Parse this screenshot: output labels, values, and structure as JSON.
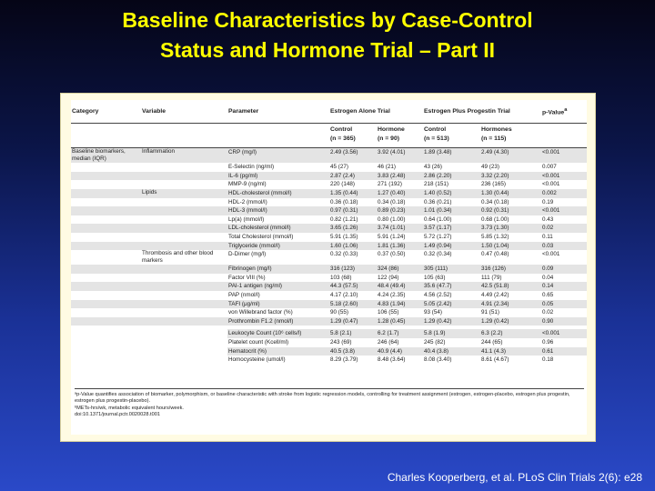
{
  "slide": {
    "title_line1": "Baseline Characteristics by Case-Control",
    "title_line2": "Status and Hormone Trial – Part II",
    "citation": "Charles Kooperberg, et al. PLoS Clin Trials 2(6): e28"
  },
  "table": {
    "headers": {
      "category": "Category",
      "variable": "Variable",
      "parameter": "Parameter",
      "trial_alone": "Estrogen Alone Trial",
      "trial_plus": "Estrogen Plus Progestin Trial",
      "pvalue": "p-Value"
    },
    "subheaders": [
      {
        "line1": "Control",
        "line2": "(n = 365)"
      },
      {
        "line1": "Hormone",
        "line2": "(n = 90)"
      },
      {
        "line1": "Control",
        "line2": "(n = 513)"
      },
      {
        "line1": "Hormones",
        "line2": "(n = 115)"
      }
    ],
    "rows": [
      {
        "category": "Baseline biomarkers, median (IQR)",
        "variable": "Inflammation",
        "parameter": "CRP (mg/l)",
        "c1": "2.49 (3.56)",
        "h1": "3.92 (4.01)",
        "c2": "1.89 (3.48)",
        "h2": "2.49 (4.30)",
        "p": "<0.001",
        "shade": true
      },
      {
        "category": "",
        "variable": "",
        "parameter": "E-Selectin (ng/ml)",
        "c1": "45 (27)",
        "h1": "46 (21)",
        "c2": "43 (26)",
        "h2": "49 (23)",
        "p": "0.007",
        "shade": false
      },
      {
        "category": "",
        "variable": "",
        "parameter": "IL-6 (pg/ml)",
        "c1": "2.87 (2.4)",
        "h1": "3.83 (2.48)",
        "c2": "2.86 (2.20)",
        "h2": "3.32 (2.20)",
        "p": "<0.001",
        "shade": true
      },
      {
        "category": "",
        "variable": "",
        "parameter": "MMP-9 (ng/ml)",
        "c1": "220 (148)",
        "h1": "271 (192)",
        "c2": "218 (151)",
        "h2": "236 (165)",
        "p": "<0.001",
        "shade": false
      },
      {
        "category": "",
        "variable": "Lipids",
        "parameter": "HDL-cholesterol (mmol/l)",
        "c1": "1.35 (0.44)",
        "h1": "1.27 (0.40)",
        "c2": "1.40 (0.52)",
        "h2": "1.30 (0.44)",
        "p": "0.002",
        "shade": true
      },
      {
        "category": "",
        "variable": "",
        "parameter": "HDL-2 (mmol/l)",
        "c1": "0.36 (0.18)",
        "h1": "0.34 (0.18)",
        "c2": "0.36 (0.21)",
        "h2": "0.34 (0.18)",
        "p": "0.19",
        "shade": false
      },
      {
        "category": "",
        "variable": "",
        "parameter": "HDL-3 (mmol/l)",
        "c1": "0.97 (0.31)",
        "h1": "0.89 (0.23)",
        "c2": "1.01 (0.34)",
        "h2": "0.92 (0.31)",
        "p": "<0.001",
        "shade": true
      },
      {
        "category": "",
        "variable": "",
        "parameter": "Lp(a) (mmol/l)",
        "c1": "0.82 (1.21)",
        "h1": "0.80 (1.00)",
        "c2": "0.64 (1.00)",
        "h2": "0.68 (1.00)",
        "p": "0.43",
        "shade": false
      },
      {
        "category": "",
        "variable": "",
        "parameter": "LDL-cholesterol (mmol/l)",
        "c1": "3.65 (1.26)",
        "h1": "3.74 (1.01)",
        "c2": "3.57 (1.17)",
        "h2": "3.73 (1.30)",
        "p": "0.02",
        "shade": true
      },
      {
        "category": "",
        "variable": "",
        "parameter": "Total Cholesterol (mmol/l)",
        "c1": "5.91 (1.35)",
        "h1": "5.91 (1.24)",
        "c2": "5.72 (1.27)",
        "h2": "5.85 (1.32)",
        "p": "0.11",
        "shade": false
      },
      {
        "category": "",
        "variable": "",
        "parameter": "Triglyceride (mmol/l)",
        "c1": "1.60 (1.06)",
        "h1": "1.81 (1.36)",
        "c2": "1.49 (0.94)",
        "h2": "1.50 (1.04)",
        "p": "0.03",
        "shade": true
      },
      {
        "category": "",
        "variable": "Thrombosis and other blood markers",
        "parameter": "D-Dimer (mg/l)",
        "c1": "0.32 (0.33)",
        "h1": "0.37 (0.50)",
        "c2": "0.32 (0.34)",
        "h2": "0.47 (0.48)",
        "p": "<0.001",
        "shade": false
      },
      {
        "category": "",
        "variable": "",
        "parameter": "Fibrinogen (mg/l)",
        "c1": "316 (123)",
        "h1": "324 (86)",
        "c2": "305 (111)",
        "h2": "316 (126)",
        "p": "0.09",
        "shade": true
      },
      {
        "category": "",
        "variable": "",
        "parameter": "Factor VIII (%)",
        "c1": "103 (68)",
        "h1": "122 (94)",
        "c2": "105 (63)",
        "h2": "111 (79)",
        "p": "0.04",
        "shade": false
      },
      {
        "category": "",
        "variable": "",
        "parameter": "PAI-1 antigen (ng/ml)",
        "c1": "44.3 (57.5)",
        "h1": "48.4 (49.4)",
        "c2": "35.6 (47.7)",
        "h2": "42.5 (51.8)",
        "p": "0.14",
        "shade": true
      },
      {
        "category": "",
        "variable": "",
        "parameter": "PAP (nmol/l)",
        "c1": "4.17 (2.10)",
        "h1": "4.24 (2.35)",
        "c2": "4.56 (2.52)",
        "h2": "4.49 (2.42)",
        "p": "0.65",
        "shade": false
      },
      {
        "category": "",
        "variable": "",
        "parameter": "TAFI (μg/ml)",
        "c1": "5.18 (2.60)",
        "h1": "4.83 (1.94)",
        "c2": "5.05 (2.42)",
        "h2": "4.91 (2.34)",
        "p": "0.05",
        "shade": true
      },
      {
        "category": "",
        "variable": "",
        "parameter": "von Willebrand factor (%)",
        "c1": "90 (55)",
        "h1": "106 (55)",
        "c2": "93 (54)",
        "h2": "91 (51)",
        "p": "0.02",
        "shade": false
      },
      {
        "category": "",
        "variable": "",
        "parameter": "Prothrombin F1.2 (nmol/l)",
        "c1": "1.29 (0.47)",
        "h1": "1.28 (0.45)",
        "c2": "1.29 (0.42)",
        "h2": "1.29 (0.42)",
        "p": "0.90",
        "shade": true
      }
    ],
    "blood_rows": [
      {
        "parameter": "Leukocyte Count (10⁶ cells/l)",
        "c1": "5.8 (2.1)",
        "h1": "6.2 (1.7)",
        "c2": "5.8 (1.9)",
        "h2": "6.3 (2.2)",
        "p": "<0.001",
        "shade": true
      },
      {
        "parameter": "Platelet count (Kcell/ml)",
        "c1": "243 (69)",
        "h1": "246 (64)",
        "c2": "245 (82)",
        "h2": "244 (65)",
        "p": "0.96",
        "shade": false
      },
      {
        "parameter": "Hematocrit (%)",
        "c1": "40.5 (3.8)",
        "h1": "40.9 (4.4)",
        "c2": "40.4 (3.8)",
        "h2": "41.1 (4.3)",
        "p": "0.61",
        "shade": true
      },
      {
        "parameter": "Homocysteine (umol/l)",
        "c1": "8.29 (3.79)",
        "h1": "8.48 (3.64)",
        "c2": "8.08 (3.40)",
        "h2": "8.61 (4.67)",
        "p": "0.18",
        "shade": false
      }
    ],
    "footnotes": [
      "ᵃp-Value quantifies association of biomarker, polymorphism, or baseline characteristic with stroke from logistic regression models, controlling for treatment assignment (estrogen, estrogen-placebo, estrogen plus progestin, estrogen plus progestin-placebo).",
      "ᵇMETs-hrs/wk, metabolic equivalent hours/week.",
      "doi:10.1371/journal.pctr.0020028.t001"
    ]
  }
}
